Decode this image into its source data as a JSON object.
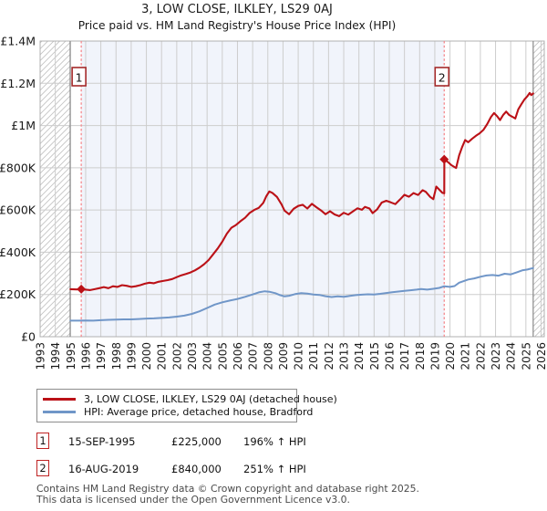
{
  "title": "3, LOW CLOSE, ILKLEY, LS29 0AJ",
  "subtitle": "Price paid vs. HM Land Registry's House Price Index (HPI)",
  "sales": [
    {
      "num": "1",
      "date": "15-SEP-1995",
      "price": "£225,000",
      "hpi": "196% ↑ HPI"
    },
    {
      "num": "2",
      "date": "16-AUG-2019",
      "price": "£840,000",
      "hpi": "251% ↑ HPI"
    }
  ],
  "footer": {
    "line1": "Contains HM Land Registry data © Crown copyright and database right 2025.",
    "line2": "This data is licensed under the Open Government Licence v3.0."
  },
  "chart_data": {
    "type": "line",
    "title": "3, LOW CLOSE, ILKLEY, LS29 0AJ",
    "subtitle": "Price paid vs. HM Land Registry's House Price Index (HPI)",
    "xlabel": "",
    "ylabel": "",
    "x_unit": "year",
    "y_unit": "GBP thousands",
    "x_range": [
      1993,
      2026.21
    ],
    "y_range": [
      0,
      1400
    ],
    "grid": true,
    "legend_position": "below",
    "x_ticks": [
      1993,
      1994,
      1995,
      1996,
      1997,
      1998,
      1999,
      2000,
      2001,
      2002,
      2003,
      2004,
      2005,
      2006,
      2007,
      2008,
      2009,
      2010,
      2011,
      2012,
      2013,
      2014,
      2015,
      2016,
      2017,
      2018,
      2019,
      2020,
      2021,
      2022,
      2023,
      2024,
      2025,
      2026
    ],
    "y_ticks": [
      {
        "v": 0,
        "label": "£0"
      },
      {
        "v": 200,
        "label": "£200K"
      },
      {
        "v": 400,
        "label": "£400K"
      },
      {
        "v": 600,
        "label": "£600K"
      },
      {
        "v": 800,
        "label": "£800K"
      },
      {
        "v": 1000,
        "label": "£1M"
      },
      {
        "v": 1200,
        "label": "£1.2M"
      },
      {
        "v": 1400,
        "label": "£1.4M"
      }
    ],
    "hatch_regions": [
      [
        1993,
        1994.98
      ],
      [
        2025.48,
        2026.21
      ]
    ],
    "data_bounds": [
      1994.98,
      2025.48
    ],
    "shaded_region": [
      1995.71,
      2019.62
    ],
    "sale_markers": [
      {
        "x": 1995.71,
        "y": 225,
        "label": "1"
      },
      {
        "x": 2019.62,
        "y": 840,
        "label": "2"
      }
    ],
    "colors": {
      "property": "#bb1117",
      "hpi": "#7096c8",
      "dashed": "#f4898d",
      "shade": "#f1f4fb",
      "hatch": "#c4c4c4",
      "grid": "#cdcdcd",
      "border": "#b0b0b0",
      "bound": "#8a8a8a",
      "badge_border": "#a42a2a",
      "tick_text": "#1a1a1a"
    },
    "series": [
      {
        "name": "3, LOW CLOSE, ILKLEY, LS29 0AJ (detached house)",
        "color": "#bb1117",
        "width": 2.1,
        "points": [
          [
            1995.0,
            225
          ],
          [
            1995.4,
            224
          ],
          [
            1995.71,
            225
          ],
          [
            1996.0,
            223
          ],
          [
            1996.3,
            221
          ],
          [
            1996.6,
            225
          ],
          [
            1996.9,
            230
          ],
          [
            1997.2,
            235
          ],
          [
            1997.5,
            230
          ],
          [
            1997.8,
            239
          ],
          [
            1998.1,
            236
          ],
          [
            1998.4,
            244
          ],
          [
            1998.7,
            241
          ],
          [
            1999.0,
            236
          ],
          [
            1999.3,
            239
          ],
          [
            1999.6,
            244
          ],
          [
            1999.9,
            251
          ],
          [
            2000.2,
            256
          ],
          [
            2000.5,
            253
          ],
          [
            2000.8,
            260
          ],
          [
            2001.1,
            264
          ],
          [
            2001.4,
            268
          ],
          [
            2001.7,
            273
          ],
          [
            2002.0,
            282
          ],
          [
            2002.3,
            291
          ],
          [
            2002.6,
            297
          ],
          [
            2002.9,
            304
          ],
          [
            2003.2,
            314
          ],
          [
            2003.5,
            327
          ],
          [
            2003.8,
            343
          ],
          [
            2004.1,
            363
          ],
          [
            2004.4,
            390
          ],
          [
            2004.7,
            418
          ],
          [
            2005.0,
            450
          ],
          [
            2005.3,
            488
          ],
          [
            2005.6,
            516
          ],
          [
            2005.9,
            529
          ],
          [
            2006.2,
            547
          ],
          [
            2006.5,
            563
          ],
          [
            2006.8,
            586
          ],
          [
            2007.1,
            600
          ],
          [
            2007.4,
            610
          ],
          [
            2007.7,
            634
          ],
          [
            2007.9,
            665
          ],
          [
            2008.1,
            688
          ],
          [
            2008.3,
            681
          ],
          [
            2008.6,
            662
          ],
          [
            2008.9,
            627
          ],
          [
            2009.1,
            597
          ],
          [
            2009.4,
            580
          ],
          [
            2009.7,
            606
          ],
          [
            2010.0,
            619
          ],
          [
            2010.3,
            625
          ],
          [
            2010.6,
            607
          ],
          [
            2010.9,
            629
          ],
          [
            2011.2,
            613
          ],
          [
            2011.5,
            598
          ],
          [
            2011.8,
            580
          ],
          [
            2012.1,
            594
          ],
          [
            2012.4,
            579
          ],
          [
            2012.7,
            571
          ],
          [
            2013.0,
            587
          ],
          [
            2013.3,
            578
          ],
          [
            2013.6,
            593
          ],
          [
            2013.9,
            608
          ],
          [
            2014.2,
            601
          ],
          [
            2014.4,
            615
          ],
          [
            2014.7,
            607
          ],
          [
            2014.9,
            585
          ],
          [
            2015.2,
            603
          ],
          [
            2015.5,
            635
          ],
          [
            2015.8,
            644
          ],
          [
            2016.1,
            636
          ],
          [
            2016.4,
            628
          ],
          [
            2016.7,
            649
          ],
          [
            2017.0,
            672
          ],
          [
            2017.3,
            663
          ],
          [
            2017.6,
            680
          ],
          [
            2017.9,
            671
          ],
          [
            2018.2,
            694
          ],
          [
            2018.4,
            686
          ],
          [
            2018.7,
            662
          ],
          [
            2018.9,
            651
          ],
          [
            2019.1,
            711
          ],
          [
            2019.3,
            696
          ],
          [
            2019.5,
            681
          ],
          [
            2019.62,
            679
          ],
          [
            2019.63,
            840
          ],
          [
            2019.9,
            825
          ],
          [
            2020.1,
            812
          ],
          [
            2020.4,
            799
          ],
          [
            2020.6,
            858
          ],
          [
            2020.8,
            898
          ],
          [
            2021.0,
            931
          ],
          [
            2021.2,
            921
          ],
          [
            2021.45,
            937
          ],
          [
            2021.7,
            951
          ],
          [
            2021.95,
            963
          ],
          [
            2022.2,
            979
          ],
          [
            2022.45,
            1007
          ],
          [
            2022.7,
            1041
          ],
          [
            2022.9,
            1059
          ],
          [
            2023.1,
            1045
          ],
          [
            2023.3,
            1026
          ],
          [
            2023.5,
            1050
          ],
          [
            2023.7,
            1066
          ],
          [
            2023.9,
            1050
          ],
          [
            2024.1,
            1042
          ],
          [
            2024.3,
            1033
          ],
          [
            2024.5,
            1077
          ],
          [
            2024.7,
            1101
          ],
          [
            2024.9,
            1123
          ],
          [
            2025.1,
            1139
          ],
          [
            2025.25,
            1154
          ],
          [
            2025.35,
            1144
          ],
          [
            2025.48,
            1152
          ]
        ]
      },
      {
        "name": "HPI: Average price, detached house, Bradford",
        "color": "#7096c8",
        "width": 2,
        "points": [
          [
            1995.0,
            76
          ],
          [
            1995.5,
            76
          ],
          [
            1996.0,
            77
          ],
          [
            1996.5,
            76
          ],
          [
            1997.0,
            78
          ],
          [
            1997.5,
            80
          ],
          [
            1998.0,
            81
          ],
          [
            1998.5,
            82
          ],
          [
            1999.0,
            82
          ],
          [
            1999.5,
            84
          ],
          [
            2000.0,
            86
          ],
          [
            2000.5,
            87
          ],
          [
            2001.0,
            89
          ],
          [
            2001.5,
            91
          ],
          [
            2002.0,
            95
          ],
          [
            2002.5,
            100
          ],
          [
            2003.0,
            108
          ],
          [
            2003.5,
            120
          ],
          [
            2004.0,
            136
          ],
          [
            2004.5,
            152
          ],
          [
            2005.0,
            163
          ],
          [
            2005.5,
            171
          ],
          [
            2006.0,
            179
          ],
          [
            2006.5,
            189
          ],
          [
            2007.0,
            200
          ],
          [
            2007.4,
            210
          ],
          [
            2007.8,
            215
          ],
          [
            2008.1,
            213
          ],
          [
            2008.5,
            206
          ],
          [
            2008.8,
            197
          ],
          [
            2009.1,
            191
          ],
          [
            2009.4,
            194
          ],
          [
            2009.8,
            202
          ],
          [
            2010.2,
            206
          ],
          [
            2010.6,
            204
          ],
          [
            2011.0,
            200
          ],
          [
            2011.4,
            198
          ],
          [
            2011.8,
            192
          ],
          [
            2012.2,
            188
          ],
          [
            2012.6,
            191
          ],
          [
            2013.0,
            189
          ],
          [
            2013.4,
            193
          ],
          [
            2013.8,
            197
          ],
          [
            2014.2,
            199
          ],
          [
            2014.6,
            201
          ],
          [
            2015.0,
            200
          ],
          [
            2015.4,
            203
          ],
          [
            2015.8,
            207
          ],
          [
            2016.2,
            211
          ],
          [
            2016.6,
            214
          ],
          [
            2017.0,
            217
          ],
          [
            2017.4,
            220
          ],
          [
            2017.8,
            223
          ],
          [
            2018.1,
            226
          ],
          [
            2018.5,
            223
          ],
          [
            2018.9,
            227
          ],
          [
            2019.3,
            231
          ],
          [
            2019.62,
            239
          ],
          [
            2020.0,
            236
          ],
          [
            2020.3,
            240
          ],
          [
            2020.6,
            256
          ],
          [
            2020.9,
            263
          ],
          [
            2021.2,
            271
          ],
          [
            2021.6,
            276
          ],
          [
            2022.0,
            284
          ],
          [
            2022.4,
            290
          ],
          [
            2022.8,
            292
          ],
          [
            2023.2,
            289
          ],
          [
            2023.6,
            298
          ],
          [
            2024.0,
            295
          ],
          [
            2024.4,
            305
          ],
          [
            2024.8,
            315
          ],
          [
            2025.1,
            318
          ],
          [
            2025.3,
            322
          ],
          [
            2025.48,
            325
          ]
        ]
      }
    ]
  }
}
